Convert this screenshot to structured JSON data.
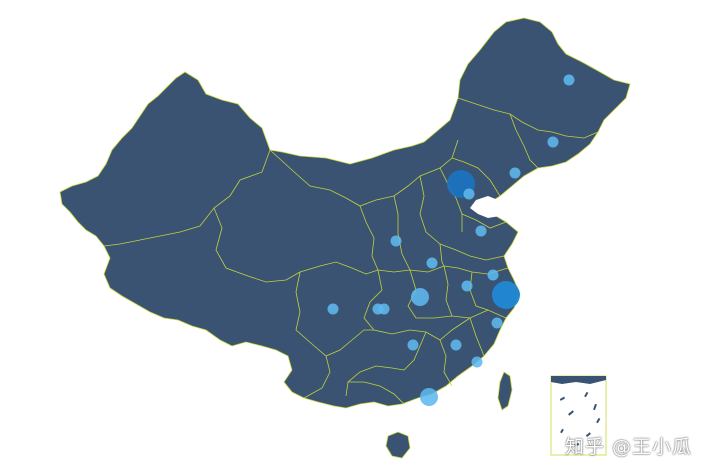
{
  "map": {
    "land_color": "#3b5373",
    "border_color": "#c8d83a",
    "marker_color": "#5fb8ee",
    "marker_large_color": "#1f8ad8",
    "marker_darkest_color": "#1b73c0"
  },
  "markers": [
    {
      "name": "beijing",
      "size": "large"
    },
    {
      "name": "shanghai",
      "size": "large"
    },
    {
      "name": "guangzhou",
      "size": "medium"
    },
    {
      "name": "harbin",
      "size": "small"
    },
    {
      "name": "changchun",
      "size": "small"
    },
    {
      "name": "shenyang",
      "size": "small"
    },
    {
      "name": "tianjin",
      "size": "small"
    },
    {
      "name": "jinan",
      "size": "small"
    },
    {
      "name": "taiyuan",
      "size": "small"
    },
    {
      "name": "zhengzhou",
      "size": "small"
    },
    {
      "name": "nanjing",
      "size": "small"
    },
    {
      "name": "hefei",
      "size": "small"
    },
    {
      "name": "wuhan",
      "size": "medium"
    },
    {
      "name": "hangzhou",
      "size": "small"
    },
    {
      "name": "nanchang",
      "size": "small"
    },
    {
      "name": "changsha",
      "size": "small"
    },
    {
      "name": "fuzhou",
      "size": "small"
    },
    {
      "name": "chengdu",
      "size": "small"
    },
    {
      "name": "chongqing",
      "size": "small"
    },
    {
      "name": "xian",
      "size": "small"
    }
  ],
  "watermark": "知乎 @王小瓜"
}
